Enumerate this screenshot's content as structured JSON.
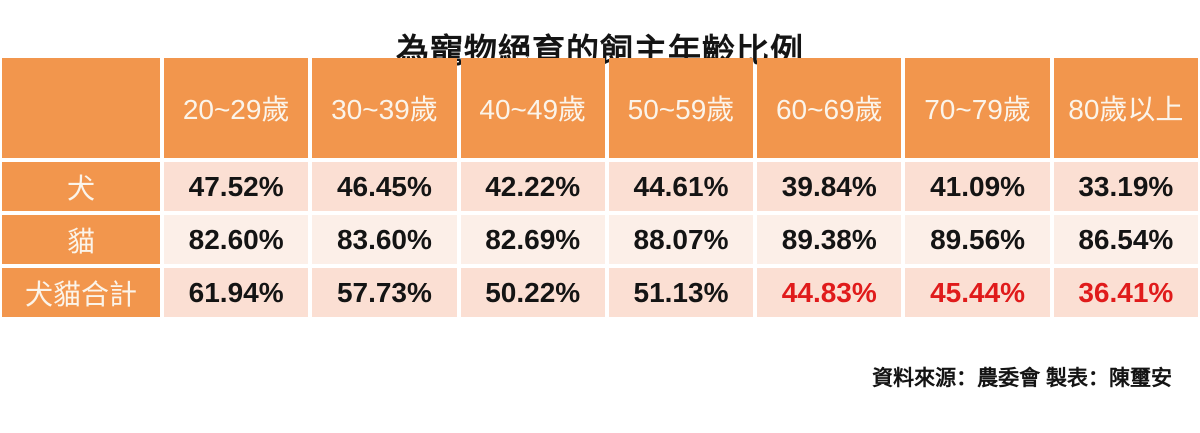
{
  "title": "為寵物絕育的飼主年齡比例",
  "footer": {
    "source_note": "資料來源：農委會 製表：陳璽安"
  },
  "table": {
    "corner_label": "",
    "columns": [
      "20~29歲",
      "30~39歲",
      "40~49歲",
      "50~59歲",
      "60~69歲",
      "70~79歲",
      "80歲以上"
    ],
    "rows": [
      {
        "label": "犬",
        "values": [
          "47.52%",
          "46.45%",
          "42.22%",
          "44.61%",
          "39.84%",
          "41.09%",
          "33.19%"
        ],
        "highlighted_indices": []
      },
      {
        "label": "貓",
        "values": [
          "82.60%",
          "83.60%",
          "82.69%",
          "88.07%",
          "89.38%",
          "89.56%",
          "86.54%"
        ],
        "highlighted_indices": []
      },
      {
        "label": "犬貓合計",
        "values": [
          "61.94%",
          "57.73%",
          "50.22%",
          "51.13%",
          "44.83%",
          "45.44%",
          "36.41%"
        ],
        "highlighted_indices": [
          4,
          5,
          6
        ]
      }
    ]
  },
  "colors": {
    "header_orange": "#F2964D",
    "row_pink": "#FBDFD3",
    "row_pink_light": "#FCEFE8",
    "highlight_red": "#E01B1B",
    "header_text": "#FBF4EA",
    "body_text": "#141414"
  },
  "chart_data": {
    "type": "table",
    "title": "為寵物絕育的飼主年齡比例",
    "categories": [
      "20~29歲",
      "30~39歲",
      "40~49歲",
      "50~59歲",
      "60~69歲",
      "70~79歲",
      "80歲以上"
    ],
    "series": [
      {
        "name": "犬",
        "values": [
          47.52,
          46.45,
          42.22,
          44.61,
          39.84,
          41.09,
          33.19
        ]
      },
      {
        "name": "貓",
        "values": [
          82.6,
          83.6,
          82.69,
          88.07,
          89.38,
          89.56,
          86.54
        ]
      },
      {
        "name": "犬貓合計",
        "values": [
          61.94,
          57.73,
          50.22,
          51.13,
          44.83,
          45.44,
          36.41
        ]
      }
    ],
    "unit": "%",
    "highlighted_cells": {
      "row": "犬貓合計",
      "columns": [
        "60~69歲",
        "70~79歲",
        "80歲以上"
      ],
      "color": "#E01B1B"
    },
    "source_note": "資料來源：農委會 製表：陳璽安"
  }
}
